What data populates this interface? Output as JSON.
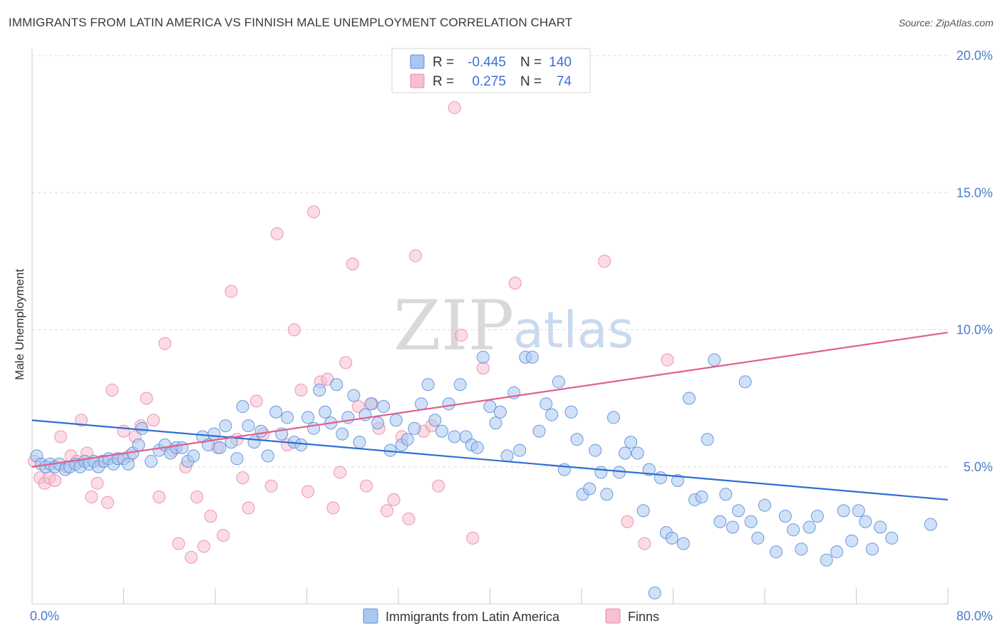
{
  "title": "IMMIGRANTS FROM LATIN AMERICA VS FINNISH MALE UNEMPLOYMENT CORRELATION CHART",
  "source": "Source: ZipAtlas.com",
  "watermark": {
    "zip": "ZIP",
    "atlas": "atlas"
  },
  "colors": {
    "blue_fill": "#a9c8f0",
    "blue_stroke": "#5b8fd9",
    "blue_line": "#2f6fd1",
    "pink_fill": "#f7bfd0",
    "pink_stroke": "#e98bab",
    "pink_line": "#e0608e",
    "grid": "#dcdcdc",
    "tick_label": "#4a7bd0"
  },
  "legend": {
    "rows": [
      {
        "r_label": "R =",
        "r_value": "-0.445",
        "n_label": "N =",
        "n_value": "140",
        "series": "blue"
      },
      {
        "r_label": "R =",
        "r_value": "0.275",
        "n_label": "N =",
        "n_value": "74",
        "series": "pink"
      }
    ]
  },
  "chart_data": {
    "type": "scatter",
    "title": "IMMIGRANTS FROM LATIN AMERICA VS FINNISH MALE UNEMPLOYMENT CORRELATION CHART",
    "xlabel": "",
    "ylabel": "Male Unemployment",
    "xlim": [
      0,
      80
    ],
    "ylim": [
      0,
      20
    ],
    "x_tick_labels": [
      "0.0%",
      "80.0%"
    ],
    "y_ticks": [
      5,
      10,
      15,
      20
    ],
    "y_tick_labels": [
      "5.0%",
      "10.0%",
      "15.0%",
      "20.0%"
    ],
    "grid": true,
    "legend_position": "top-center",
    "series": [
      {
        "name": "Immigrants from Latin America",
        "color": "blue",
        "trend": {
          "x": [
            0,
            80
          ],
          "y": [
            6.7,
            3.8
          ]
        },
        "points": [
          [
            0.4,
            5.4
          ],
          [
            0.8,
            5.1
          ],
          [
            1.2,
            5.0
          ],
          [
            1.6,
            5.1
          ],
          [
            2.0,
            5.0
          ],
          [
            2.4,
            5.1
          ],
          [
            2.9,
            4.9
          ],
          [
            3.3,
            5.0
          ],
          [
            3.8,
            5.1
          ],
          [
            4.2,
            5.0
          ],
          [
            4.6,
            5.2
          ],
          [
            5.0,
            5.1
          ],
          [
            5.4,
            5.2
          ],
          [
            5.8,
            5.0
          ],
          [
            6.3,
            5.2
          ],
          [
            6.7,
            5.3
          ],
          [
            7.1,
            5.1
          ],
          [
            7.5,
            5.3
          ],
          [
            8.0,
            5.3
          ],
          [
            8.4,
            5.1
          ],
          [
            8.8,
            5.5
          ],
          [
            9.3,
            5.8
          ],
          [
            9.6,
            6.4
          ],
          [
            10.4,
            5.2
          ],
          [
            11.1,
            5.6
          ],
          [
            11.6,
            5.8
          ],
          [
            12.1,
            5.5
          ],
          [
            12.6,
            5.7
          ],
          [
            13.1,
            5.7
          ],
          [
            13.6,
            5.2
          ],
          [
            14.1,
            5.4
          ],
          [
            14.9,
            6.1
          ],
          [
            15.4,
            5.8
          ],
          [
            15.9,
            6.2
          ],
          [
            16.4,
            5.7
          ],
          [
            16.9,
            6.5
          ],
          [
            17.4,
            5.9
          ],
          [
            17.9,
            5.3
          ],
          [
            18.4,
            7.2
          ],
          [
            18.9,
            6.5
          ],
          [
            19.4,
            5.9
          ],
          [
            20.0,
            6.3
          ],
          [
            20.6,
            5.4
          ],
          [
            21.3,
            7.0
          ],
          [
            21.8,
            6.2
          ],
          [
            22.3,
            6.8
          ],
          [
            22.9,
            5.9
          ],
          [
            23.5,
            5.8
          ],
          [
            24.1,
            6.8
          ],
          [
            24.6,
            6.4
          ],
          [
            25.1,
            7.8
          ],
          [
            25.6,
            7.0
          ],
          [
            26.1,
            6.6
          ],
          [
            26.6,
            8.0
          ],
          [
            27.1,
            6.2
          ],
          [
            27.6,
            6.8
          ],
          [
            28.1,
            7.6
          ],
          [
            28.6,
            5.9
          ],
          [
            29.1,
            6.9
          ],
          [
            29.6,
            7.3
          ],
          [
            30.2,
            6.6
          ],
          [
            30.7,
            7.2
          ],
          [
            31.3,
            5.6
          ],
          [
            31.8,
            6.7
          ],
          [
            32.3,
            5.8
          ],
          [
            32.8,
            6.0
          ],
          [
            33.4,
            6.4
          ],
          [
            34.0,
            7.3
          ],
          [
            34.6,
            8.0
          ],
          [
            35.2,
            6.7
          ],
          [
            35.8,
            6.3
          ],
          [
            36.4,
            7.3
          ],
          [
            36.9,
            6.1
          ],
          [
            37.4,
            8.0
          ],
          [
            37.9,
            6.1
          ],
          [
            38.4,
            5.8
          ],
          [
            38.9,
            5.7
          ],
          [
            39.4,
            9.0
          ],
          [
            40.0,
            7.2
          ],
          [
            40.5,
            6.6
          ],
          [
            40.9,
            7.0
          ],
          [
            41.5,
            5.4
          ],
          [
            42.1,
            7.7
          ],
          [
            42.6,
            5.6
          ],
          [
            43.1,
            9.0
          ],
          [
            43.7,
            9.0
          ],
          [
            44.3,
            6.3
          ],
          [
            44.9,
            7.3
          ],
          [
            45.4,
            6.9
          ],
          [
            46.0,
            8.1
          ],
          [
            46.5,
            4.9
          ],
          [
            47.1,
            7.0
          ],
          [
            47.6,
            6.0
          ],
          [
            48.1,
            4.0
          ],
          [
            48.7,
            4.2
          ],
          [
            49.2,
            5.6
          ],
          [
            49.7,
            4.8
          ],
          [
            50.2,
            4.0
          ],
          [
            50.8,
            6.8
          ],
          [
            51.3,
            4.8
          ],
          [
            51.8,
            5.5
          ],
          [
            52.3,
            5.9
          ],
          [
            52.9,
            5.5
          ],
          [
            53.4,
            3.4
          ],
          [
            53.9,
            4.9
          ],
          [
            54.4,
            0.4
          ],
          [
            54.9,
            4.6
          ],
          [
            55.4,
            2.6
          ],
          [
            55.9,
            2.4
          ],
          [
            56.4,
            4.5
          ],
          [
            56.9,
            2.2
          ],
          [
            57.4,
            7.5
          ],
          [
            57.9,
            3.8
          ],
          [
            58.5,
            3.9
          ],
          [
            59.0,
            6.0
          ],
          [
            59.6,
            8.9
          ],
          [
            60.1,
            3.0
          ],
          [
            60.6,
            4.0
          ],
          [
            61.2,
            2.8
          ],
          [
            61.7,
            3.4
          ],
          [
            62.3,
            8.1
          ],
          [
            62.8,
            3.0
          ],
          [
            63.4,
            2.4
          ],
          [
            64.0,
            3.6
          ],
          [
            65.0,
            1.9
          ],
          [
            65.8,
            3.2
          ],
          [
            66.5,
            2.7
          ],
          [
            67.2,
            2.0
          ],
          [
            67.9,
            2.8
          ],
          [
            68.6,
            3.2
          ],
          [
            69.4,
            1.6
          ],
          [
            70.3,
            1.9
          ],
          [
            70.9,
            3.4
          ],
          [
            71.6,
            2.3
          ],
          [
            72.2,
            3.4
          ],
          [
            72.8,
            3.0
          ],
          [
            73.4,
            2.0
          ],
          [
            74.1,
            2.8
          ],
          [
            75.1,
            2.4
          ],
          [
            78.5,
            2.9
          ]
        ]
      },
      {
        "name": "Finns",
        "color": "pink",
        "trend": {
          "x": [
            0,
            80
          ],
          "y": [
            5.0,
            9.9
          ]
        },
        "points": [
          [
            0.2,
            5.2
          ],
          [
            0.7,
            4.6
          ],
          [
            1.1,
            4.4
          ],
          [
            1.5,
            4.6
          ],
          [
            2.0,
            4.5
          ],
          [
            2.5,
            6.1
          ],
          [
            3.0,
            5.0
          ],
          [
            3.4,
            5.4
          ],
          [
            3.9,
            5.2
          ],
          [
            4.3,
            6.7
          ],
          [
            4.8,
            5.5
          ],
          [
            5.2,
            3.9
          ],
          [
            5.7,
            4.4
          ],
          [
            6.1,
            5.2
          ],
          [
            6.6,
            3.7
          ],
          [
            7.0,
            7.8
          ],
          [
            7.5,
            5.3
          ],
          [
            8.0,
            6.3
          ],
          [
            8.5,
            5.4
          ],
          [
            9.0,
            6.1
          ],
          [
            9.5,
            6.5
          ],
          [
            10.0,
            7.5
          ],
          [
            10.6,
            6.7
          ],
          [
            11.1,
            3.9
          ],
          [
            11.6,
            9.5
          ],
          [
            12.3,
            5.6
          ],
          [
            12.8,
            2.2
          ],
          [
            13.4,
            5.0
          ],
          [
            13.9,
            1.7
          ],
          [
            14.4,
            3.9
          ],
          [
            15.0,
            2.1
          ],
          [
            15.6,
            3.2
          ],
          [
            16.2,
            5.7
          ],
          [
            16.7,
            2.5
          ],
          [
            17.4,
            11.4
          ],
          [
            17.9,
            6.0
          ],
          [
            18.4,
            4.6
          ],
          [
            18.9,
            3.5
          ],
          [
            19.6,
            7.4
          ],
          [
            20.2,
            6.2
          ],
          [
            20.9,
            4.3
          ],
          [
            21.4,
            13.5
          ],
          [
            22.3,
            5.8
          ],
          [
            22.9,
            10.0
          ],
          [
            23.5,
            7.8
          ],
          [
            24.1,
            4.1
          ],
          [
            24.6,
            14.3
          ],
          [
            25.2,
            8.1
          ],
          [
            25.8,
            8.2
          ],
          [
            26.3,
            3.5
          ],
          [
            26.9,
            4.8
          ],
          [
            27.4,
            8.8
          ],
          [
            28.0,
            12.4
          ],
          [
            28.5,
            7.2
          ],
          [
            29.2,
            4.3
          ],
          [
            29.7,
            7.3
          ],
          [
            30.3,
            6.4
          ],
          [
            31.0,
            3.4
          ],
          [
            31.6,
            3.8
          ],
          [
            32.3,
            6.1
          ],
          [
            32.9,
            3.1
          ],
          [
            33.5,
            12.7
          ],
          [
            34.2,
            6.3
          ],
          [
            34.9,
            6.5
          ],
          [
            35.5,
            4.3
          ],
          [
            36.9,
            18.1
          ],
          [
            37.5,
            9.8
          ],
          [
            38.5,
            2.4
          ],
          [
            39.4,
            8.6
          ],
          [
            42.2,
            11.7
          ],
          [
            50.0,
            12.5
          ],
          [
            52.0,
            3.0
          ],
          [
            53.5,
            2.2
          ],
          [
            55.5,
            8.9
          ]
        ]
      }
    ]
  },
  "bottom_legend": [
    {
      "label": "Immigrants from Latin America",
      "series": "blue"
    },
    {
      "label": "Finns",
      "series": "pink"
    }
  ]
}
